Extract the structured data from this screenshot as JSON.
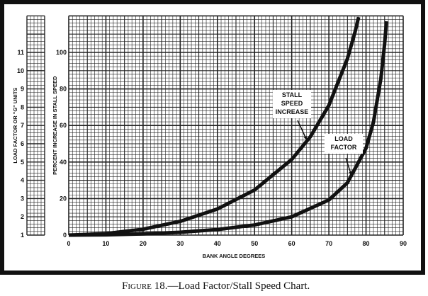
{
  "chart_data": {
    "type": "line",
    "caption_prefix": "Figure 18.",
    "caption_text": "—Load Factor/Stall Speed Chart.",
    "xlabel": "BANK ANGLE DEGREES",
    "ylabel": "PERCENT INCREASE IN STALL SPEED",
    "ylabel_left": "LOAD FACTOR OR \"G\" UNITS",
    "xlim": [
      0,
      90
    ],
    "ylim": [
      0,
      120
    ],
    "left_ylim": [
      1,
      12
    ],
    "grid": true,
    "x_ticks": [
      "0",
      "10",
      "20",
      "30",
      "40",
      "50",
      "60",
      "70",
      "80",
      "90"
    ],
    "y_ticks": [
      "0",
      "20",
      "40",
      "60",
      "80",
      "100"
    ],
    "left_ticks": [
      "1",
      "2",
      "3",
      "4",
      "5",
      "6",
      "7",
      "8",
      "9",
      "10",
      "11"
    ],
    "series": [
      {
        "name": "STALL SPEED INCREASE",
        "axis": "percent",
        "x": [
          0,
          10,
          20,
          30,
          40,
          50,
          60,
          65,
          70,
          75,
          77,
          78
        ],
        "y": [
          0,
          0.8,
          3.2,
          7.5,
          14.3,
          24.7,
          41.4,
          53.8,
          71.0,
          96.6,
          110.8,
          119.3
        ]
      },
      {
        "name": "LOAD FACTOR",
        "axis": "g-units",
        "x": [
          0,
          10,
          20,
          30,
          40,
          50,
          60,
          70,
          75,
          80,
          82,
          84,
          85,
          85.5
        ],
        "y": [
          1,
          1.015,
          1.064,
          1.155,
          1.305,
          1.556,
          2.0,
          2.924,
          3.864,
          5.759,
          7.185,
          9.567,
          11.474,
          12.7
        ]
      }
    ],
    "annotations": [
      {
        "lines": [
          "STALL",
          "SPEED",
          "INCREASE"
        ],
        "target_series": "STALL SPEED INCREASE"
      },
      {
        "lines": [
          "LOAD",
          "FACTOR"
        ],
        "target_series": "LOAD FACTOR"
      }
    ]
  }
}
